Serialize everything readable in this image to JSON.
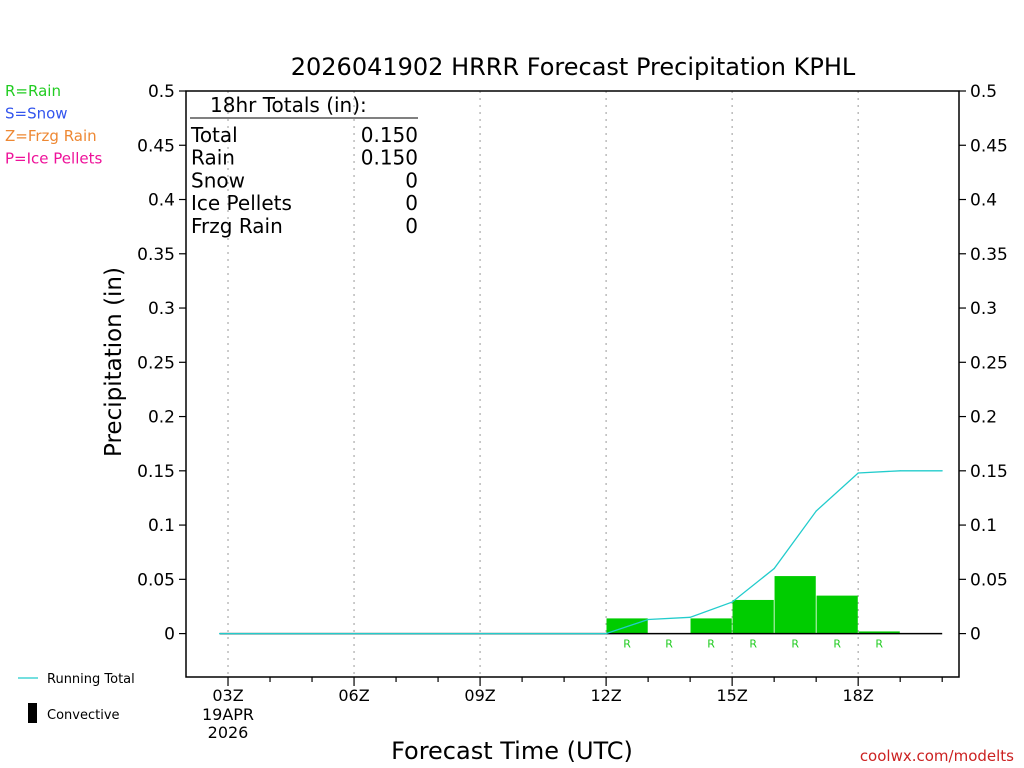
{
  "title": "2026041902 HRRR Forecast Precipitation KPHL",
  "legend_types": [
    {
      "label": "R=Rain",
      "color": "#22cc22"
    },
    {
      "label": "S=Snow",
      "color": "#3355ee"
    },
    {
      "label": "Z=Frzg Rain",
      "color": "#ee8833"
    },
    {
      "label": "P=Ice Pellets",
      "color": "#ee1199"
    }
  ],
  "legend_bottom": {
    "running_total": "Running Total",
    "convective": "Convective"
  },
  "totals_box": {
    "header": "18hr Totals (in):",
    "rows": [
      {
        "label": "Total",
        "value": "0.150"
      },
      {
        "label": "Rain",
        "value": "0.150"
      },
      {
        "label": "Snow",
        "value": "0"
      },
      {
        "label": "Ice Pellets",
        "value": "0"
      },
      {
        "label": "Frzg Rain",
        "value": "0"
      }
    ]
  },
  "credit": "coolwx.com/modelts",
  "colors": {
    "rain_bar": "#00cc00",
    "running_total": "#22cccc",
    "axis": "#000000",
    "grid": "#aaaaaa",
    "credit": "#cc2222"
  },
  "chart_data": {
    "type": "bar",
    "title": "2026041902 HRRR Forecast Precipitation KPHL",
    "xlabel": "Forecast Time (UTC)",
    "ylabel": "Precipitation (in)",
    "ylim": [
      -0.04,
      0.5
    ],
    "yticks": [
      "0",
      "0.05",
      "0.1",
      "0.15",
      "0.2",
      "0.25",
      "0.3",
      "0.35",
      "0.4",
      "0.45",
      "0.5"
    ],
    "x_tick_labels": [
      {
        "hour": 3,
        "label": "03Z"
      },
      {
        "hour": 6,
        "label": "06Z"
      },
      {
        "hour": 9,
        "label": "09Z"
      },
      {
        "hour": 12,
        "label": "12Z"
      },
      {
        "hour": 15,
        "label": "15Z"
      },
      {
        "hour": 18,
        "label": "18Z"
      }
    ],
    "x_date_label": [
      "19APR",
      "2026"
    ],
    "xlim": [
      2.0,
      20.4
    ],
    "grid_x": "dotted",
    "hours": [
      3,
      4,
      5,
      6,
      7,
      8,
      9,
      10,
      11,
      12,
      13,
      14,
      15,
      16,
      17,
      18,
      19,
      20
    ],
    "series": [
      {
        "name": "Rain",
        "kind": "bar",
        "bar_end_hours": [
          13,
          14,
          15,
          16,
          17,
          18,
          19
        ],
        "values": [
          0.014,
          0.0,
          0.014,
          0.031,
          0.053,
          0.035,
          0.002
        ],
        "type_labels": [
          "R",
          "R",
          "R",
          "R",
          "R",
          "R",
          "R"
        ]
      },
      {
        "name": "Running Total",
        "kind": "line",
        "hours": [
          2.8,
          12.0,
          13.0,
          14.0,
          15.0,
          16.0,
          17.0,
          18.0,
          19.0,
          20.0
        ],
        "values": [
          0,
          0,
          0.013,
          0.015,
          0.029,
          0.06,
          0.113,
          0.148,
          0.15,
          0.15
        ]
      },
      {
        "name": "Convective",
        "kind": "bar",
        "values": [
          0,
          0,
          0,
          0,
          0,
          0,
          0
        ]
      }
    ]
  }
}
